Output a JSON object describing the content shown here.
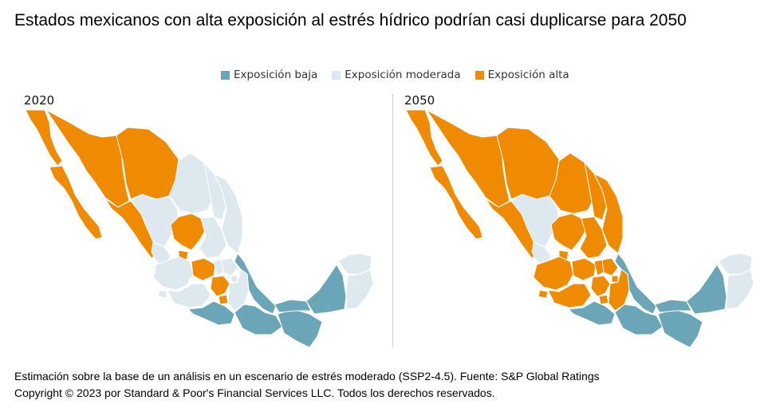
{
  "title": "Estados mexicanos con alta exposición al estrés hídrico podrían casi duplicarse para 2050",
  "legend": [
    {
      "label": "Exposición baja",
      "color": "#6aa6b8"
    },
    {
      "label": "Exposición moderada",
      "color": "#dde9ef"
    },
    {
      "label": "Exposición alta",
      "color": "#f08a00"
    }
  ],
  "panels": [
    {
      "year": "2020"
    },
    {
      "year": "2050"
    }
  ],
  "footnote": {
    "line1": "Estimación sobre la base de un análisis en un escenario de estrés moderado (SSP2-4.5). Fuente: S&P Global Ratings",
    "line2": "Copyright © 2023 por Standard & Poor's Financial Services LLC. Todos los derechos reservados."
  }
}
